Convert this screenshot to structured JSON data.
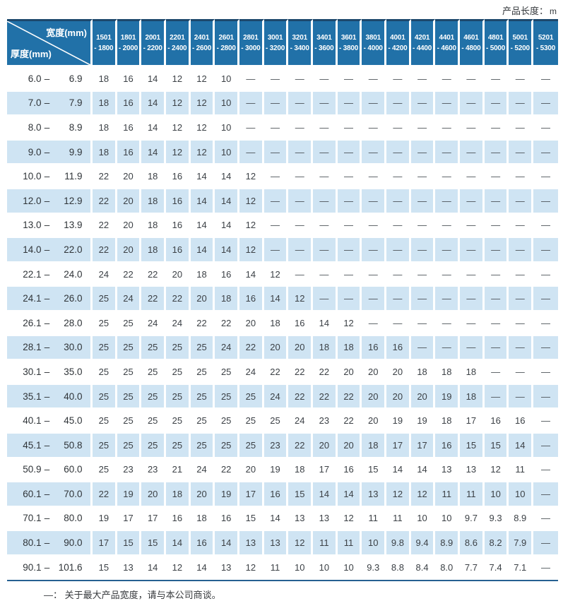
{
  "page": {
    "length_note_label": "产品长度：",
    "length_note_unit": "m",
    "footer_note": "—： 关于最大产品宽度，请与本公司商谈。"
  },
  "corner": {
    "width_label": "宽度(mm)",
    "thickness_label": "厚度(mm)"
  },
  "colors": {
    "header_blue": "#2171a8",
    "header_top_border": "#1d486c",
    "alt_row_blue": "#cfe4f3",
    "bottom_rule": "#266191",
    "cell_text": "#3c4146"
  },
  "chart_data": {
    "type": "table",
    "unit_note": "产品长度：m",
    "col_group_label": "宽度(mm)",
    "row_group_label": "厚度(mm)",
    "dash_symbol": "—",
    "dash_note": "关于最大产品宽度，请与本公司商谈。",
    "columns": [
      {
        "from": "1501",
        "to": "1800"
      },
      {
        "from": "1801",
        "to": "2000"
      },
      {
        "from": "2001",
        "to": "2200"
      },
      {
        "from": "2201",
        "to": "2400"
      },
      {
        "from": "2401",
        "to": "2600"
      },
      {
        "from": "2601",
        "to": "2800"
      },
      {
        "from": "2801",
        "to": "3000"
      },
      {
        "from": "3001",
        "to": "3200"
      },
      {
        "from": "3201",
        "to": "3400"
      },
      {
        "from": "3401",
        "to": "3600"
      },
      {
        "from": "3601",
        "to": "3800"
      },
      {
        "from": "3801",
        "to": "4000"
      },
      {
        "from": "4001",
        "to": "4200"
      },
      {
        "from": "4201",
        "to": "4400"
      },
      {
        "from": "4401",
        "to": "4600"
      },
      {
        "from": "4601",
        "to": "4800"
      },
      {
        "from": "4801",
        "to": "5000"
      },
      {
        "from": "5001",
        "to": "5200"
      },
      {
        "from": "5201",
        "to": "5300"
      }
    ],
    "rows": [
      {
        "from": "6.0",
        "to": "6.9",
        "values": [
          "18",
          "16",
          "14",
          "12",
          "12",
          "10",
          "—",
          "—",
          "—",
          "—",
          "—",
          "—",
          "—",
          "—",
          "—",
          "—",
          "—",
          "—",
          "—"
        ]
      },
      {
        "from": "7.0",
        "to": "7.9",
        "values": [
          "18",
          "16",
          "14",
          "12",
          "12",
          "10",
          "—",
          "—",
          "—",
          "—",
          "—",
          "—",
          "—",
          "—",
          "—",
          "—",
          "—",
          "—",
          "—"
        ]
      },
      {
        "from": "8.0",
        "to": "8.9",
        "values": [
          "18",
          "16",
          "14",
          "12",
          "12",
          "10",
          "—",
          "—",
          "—",
          "—",
          "—",
          "—",
          "—",
          "—",
          "—",
          "—",
          "—",
          "—",
          "—"
        ]
      },
      {
        "from": "9.0",
        "to": "9.9",
        "values": [
          "18",
          "16",
          "14",
          "12",
          "12",
          "10",
          "—",
          "—",
          "—",
          "—",
          "—",
          "—",
          "—",
          "—",
          "—",
          "—",
          "—",
          "—",
          "—"
        ]
      },
      {
        "from": "10.0",
        "to": "11.9",
        "values": [
          "22",
          "20",
          "18",
          "16",
          "14",
          "14",
          "12",
          "—",
          "—",
          "—",
          "—",
          "—",
          "—",
          "—",
          "—",
          "—",
          "—",
          "—",
          "—"
        ]
      },
      {
        "from": "12.0",
        "to": "12.9",
        "values": [
          "22",
          "20",
          "18",
          "16",
          "14",
          "14",
          "12",
          "—",
          "—",
          "—",
          "—",
          "—",
          "—",
          "—",
          "—",
          "—",
          "—",
          "—",
          "—"
        ]
      },
      {
        "from": "13.0",
        "to": "13.9",
        "values": [
          "22",
          "20",
          "18",
          "16",
          "14",
          "14",
          "12",
          "—",
          "—",
          "—",
          "—",
          "—",
          "—",
          "—",
          "—",
          "—",
          "—",
          "—",
          "—"
        ]
      },
      {
        "from": "14.0",
        "to": "22.0",
        "values": [
          "22",
          "20",
          "18",
          "16",
          "14",
          "14",
          "12",
          "—",
          "—",
          "—",
          "—",
          "—",
          "—",
          "—",
          "—",
          "—",
          "—",
          "—",
          "—"
        ]
      },
      {
        "from": "22.1",
        "to": "24.0",
        "values": [
          "24",
          "22",
          "22",
          "20",
          "18",
          "16",
          "14",
          "12",
          "—",
          "—",
          "—",
          "—",
          "—",
          "—",
          "—",
          "—",
          "—",
          "—",
          "—"
        ]
      },
      {
        "from": "24.1",
        "to": "26.0",
        "values": [
          "25",
          "24",
          "22",
          "22",
          "20",
          "18",
          "16",
          "14",
          "12",
          "—",
          "—",
          "—",
          "—",
          "—",
          "—",
          "—",
          "—",
          "—",
          "—"
        ]
      },
      {
        "from": "26.1",
        "to": "28.0",
        "values": [
          "25",
          "25",
          "24",
          "24",
          "22",
          "22",
          "20",
          "18",
          "16",
          "14",
          "12",
          "—",
          "—",
          "—",
          "—",
          "—",
          "—",
          "—",
          "—"
        ]
      },
      {
        "from": "28.1",
        "to": "30.0",
        "values": [
          "25",
          "25",
          "25",
          "25",
          "25",
          "24",
          "22",
          "20",
          "20",
          "18",
          "18",
          "16",
          "16",
          "—",
          "—",
          "—",
          "—",
          "—",
          "—"
        ]
      },
      {
        "from": "30.1",
        "to": "35.0",
        "values": [
          "25",
          "25",
          "25",
          "25",
          "25",
          "25",
          "24",
          "22",
          "22",
          "22",
          "20",
          "20",
          "20",
          "18",
          "18",
          "18",
          "—",
          "—",
          "—"
        ]
      },
      {
        "from": "35.1",
        "to": "40.0",
        "values": [
          "25",
          "25",
          "25",
          "25",
          "25",
          "25",
          "25",
          "24",
          "22",
          "22",
          "22",
          "20",
          "20",
          "20",
          "19",
          "18",
          "—",
          "—",
          "—"
        ]
      },
      {
        "from": "40.1",
        "to": "45.0",
        "values": [
          "25",
          "25",
          "25",
          "25",
          "25",
          "25",
          "25",
          "25",
          "24",
          "23",
          "22",
          "20",
          "19",
          "19",
          "18",
          "17",
          "16",
          "16",
          "—"
        ]
      },
      {
        "from": "45.1",
        "to": "50.8",
        "values": [
          "25",
          "25",
          "25",
          "25",
          "25",
          "25",
          "25",
          "23",
          "22",
          "20",
          "20",
          "18",
          "17",
          "17",
          "16",
          "15",
          "15",
          "14",
          "—"
        ]
      },
      {
        "from": "50.9",
        "to": "60.0",
        "values": [
          "25",
          "23",
          "23",
          "21",
          "24",
          "22",
          "20",
          "19",
          "18",
          "17",
          "16",
          "15",
          "14",
          "14",
          "13",
          "13",
          "12",
          "11",
          "—"
        ]
      },
      {
        "from": "60.1",
        "to": "70.0",
        "values": [
          "22",
          "19",
          "20",
          "18",
          "20",
          "19",
          "17",
          "16",
          "15",
          "14",
          "14",
          "13",
          "12",
          "12",
          "11",
          "11",
          "10",
          "10",
          "—"
        ]
      },
      {
        "from": "70.1",
        "to": "80.0",
        "values": [
          "19",
          "17",
          "17",
          "16",
          "18",
          "16",
          "15",
          "14",
          "13",
          "13",
          "12",
          "11",
          "11",
          "10",
          "10",
          "9.7",
          "9.3",
          "8.9",
          "—"
        ]
      },
      {
        "from": "80.1",
        "to": "90.0",
        "values": [
          "17",
          "15",
          "15",
          "14",
          "16",
          "14",
          "13",
          "13",
          "12",
          "11",
          "11",
          "10",
          "9.8",
          "9.4",
          "8.9",
          "8.6",
          "8.2",
          "7.9",
          "—"
        ]
      },
      {
        "from": "90.1",
        "to": "101.6",
        "values": [
          "15",
          "13",
          "14",
          "12",
          "14",
          "13",
          "12",
          "11",
          "10",
          "10",
          "10",
          "9.3",
          "8.8",
          "8.4",
          "8.0",
          "7.7",
          "7.4",
          "7.1",
          "—"
        ]
      }
    ]
  }
}
